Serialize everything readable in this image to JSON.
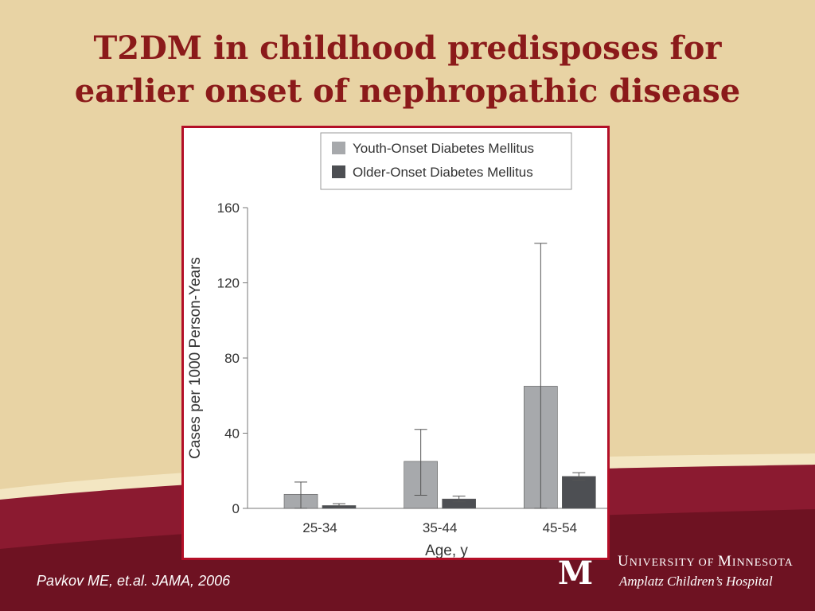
{
  "slide": {
    "title_line1": "T2DM in childhood predisposes for",
    "title_line2": "earlier onset of nephropathic disease",
    "citation": "Pavkov ME, et.al. JAMA, 2006",
    "university": {
      "first": "U",
      "rest1": "NIVERSITY OF ",
      "mid": "M",
      "rest2": "INNESOTA"
    },
    "hospital": "Amplatz Children’s Hospital",
    "logo_letter": "M",
    "colors": {
      "title": "#8b1a1a",
      "background_top": "#e8d3a4",
      "background_bottom": "#7a1528",
      "chart_border": "#b30f28"
    }
  },
  "chart_data": {
    "type": "bar",
    "categories": [
      "25-34",
      "35-44",
      "45-54"
    ],
    "series": [
      {
        "name": "Youth-Onset Diabetes Mellitus",
        "color": "#a7a9ac",
        "values": [
          7.5,
          25,
          65
        ],
        "error_low": [
          0,
          7,
          0
        ],
        "error_high": [
          14,
          42,
          141
        ]
      },
      {
        "name": "Older-Onset Diabetes Mellitus",
        "color": "#4d4f53",
        "values": [
          1.5,
          5,
          17
        ],
        "error_low": [
          0.5,
          3.5,
          15
        ],
        "error_high": [
          2.5,
          6.5,
          19
        ]
      }
    ],
    "xlabel": "Age, y",
    "ylabel": "Cases per 1000 Person-Years",
    "ylim": [
      0,
      160
    ],
    "yticks": [
      0,
      40,
      80,
      120,
      160
    ],
    "grid": false,
    "legend": "top"
  }
}
